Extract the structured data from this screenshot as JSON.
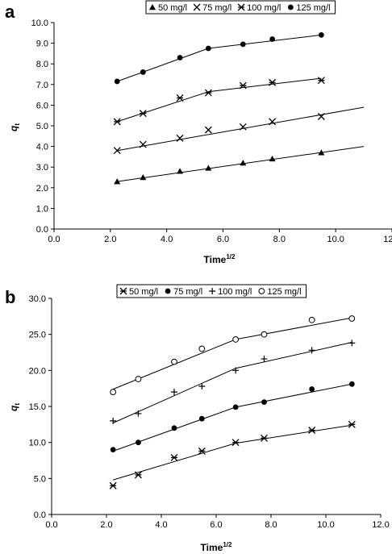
{
  "chart_data": [
    {
      "panel": "a",
      "type": "scatter",
      "xlabel": "Time",
      "xlabel_sup": "1/2",
      "ylabel": "q",
      "ylabel_sub": "t",
      "xlim": [
        0,
        12
      ],
      "ylim": [
        0,
        10
      ],
      "x_ticks": [
        "0.0",
        "2.0",
        "4.0",
        "6.0",
        "8.0",
        "10.0",
        "12.0"
      ],
      "y_ticks": [
        "0.0",
        "1.0",
        "2.0",
        "3.0",
        "4.0",
        "5.0",
        "6.0",
        "7.0",
        "8.0",
        "9.0",
        "10.0"
      ],
      "grid": false,
      "legend_position": "top",
      "series": [
        {
          "name": "50 mg/l",
          "marker": "triangle",
          "x": [
            2.24,
            3.16,
            4.47,
            5.48,
            6.71,
            7.75,
            9.49
          ],
          "y": [
            2.3,
            2.5,
            2.8,
            2.95,
            3.2,
            3.4,
            3.7
          ],
          "fit": [
            [
              2.24,
              2.3
            ],
            [
              11.0,
              4.0
            ]
          ]
        },
        {
          "name": "75 mg/l",
          "marker": "x",
          "x": [
            2.24,
            3.16,
            4.47,
            5.48,
            6.71,
            7.75,
            9.49
          ],
          "y": [
            3.8,
            4.1,
            4.4,
            4.8,
            4.95,
            5.2,
            5.45
          ],
          "fit": [
            [
              2.24,
              3.8
            ],
            [
              11.0,
              5.9
            ]
          ]
        },
        {
          "name": "100 mg/l",
          "marker": "star",
          "x": [
            2.24,
            3.16,
            4.47,
            5.48,
            6.71,
            7.75,
            9.49
          ],
          "y": [
            5.2,
            5.6,
            6.35,
            6.6,
            6.95,
            7.1,
            7.2
          ],
          "fit": [
            [
              2.24,
              5.2
            ],
            [
              5.48,
              6.65
            ],
            [
              9.49,
              7.3
            ]
          ]
        },
        {
          "name": "125 mg/l",
          "marker": "dot",
          "x": [
            2.24,
            3.16,
            4.47,
            5.48,
            6.71,
            7.75,
            9.49
          ],
          "y": [
            7.15,
            7.6,
            8.3,
            8.75,
            8.95,
            9.2,
            9.4
          ],
          "fit": [
            [
              2.24,
              7.15
            ],
            [
              5.48,
              8.75
            ],
            [
              9.49,
              9.4
            ]
          ]
        }
      ]
    },
    {
      "panel": "b",
      "type": "scatter",
      "xlabel": "Time",
      "xlabel_sup": "1/2",
      "ylabel": "q",
      "ylabel_sub": "t",
      "xlim": [
        0,
        12
      ],
      "ylim": [
        0,
        30
      ],
      "x_ticks": [
        "0.0",
        "2.0",
        "4.0",
        "6.0",
        "8.0",
        "10.0",
        "12.0"
      ],
      "y_ticks": [
        "0.0",
        "5.0",
        "10.0",
        "15.0",
        "20.0",
        "25.0",
        "30.0"
      ],
      "grid": false,
      "legend_position": "top",
      "series": [
        {
          "name": "50 mg/l",
          "marker": "star",
          "x": [
            2.24,
            3.16,
            4.47,
            5.48,
            6.71,
            7.75,
            9.49,
            10.95
          ],
          "y": [
            4.0,
            5.5,
            7.9,
            8.8,
            10.0,
            10.6,
            11.7,
            12.5
          ],
          "fit": [
            [
              2.24,
              4.8
            ],
            [
              6.71,
              9.9
            ],
            [
              10.95,
              12.4
            ]
          ]
        },
        {
          "name": "75 mg/l",
          "marker": "dot",
          "x": [
            2.24,
            3.16,
            4.47,
            5.48,
            6.71,
            7.75,
            9.49,
            10.95
          ],
          "y": [
            9.0,
            10.0,
            12.0,
            13.3,
            14.9,
            15.6,
            17.4,
            18.1
          ],
          "fit": [
            [
              2.24,
              8.8
            ],
            [
              6.71,
              14.9
            ],
            [
              10.95,
              18.1
            ]
          ]
        },
        {
          "name": "100 mg/l",
          "marker": "plus",
          "x": [
            2.24,
            3.16,
            4.47,
            5.48,
            6.71,
            7.75,
            9.49,
            10.95
          ],
          "y": [
            13.0,
            14.0,
            17.0,
            17.8,
            20.0,
            21.6,
            22.8,
            23.8
          ],
          "fit": [
            [
              2.24,
              12.7
            ],
            [
              6.71,
              20.3
            ],
            [
              10.95,
              23.9
            ]
          ]
        },
        {
          "name": "125 mg/l",
          "marker": "circle",
          "x": [
            2.24,
            3.16,
            4.47,
            5.48,
            6.71,
            7.75,
            9.49,
            10.95
          ],
          "y": [
            17.0,
            18.8,
            21.2,
            23.0,
            24.3,
            25.0,
            27.0,
            27.2
          ],
          "fit": [
            [
              2.24,
              17.4
            ],
            [
              6.71,
              24.3
            ],
            [
              10.95,
              27.3
            ]
          ]
        }
      ]
    }
  ]
}
